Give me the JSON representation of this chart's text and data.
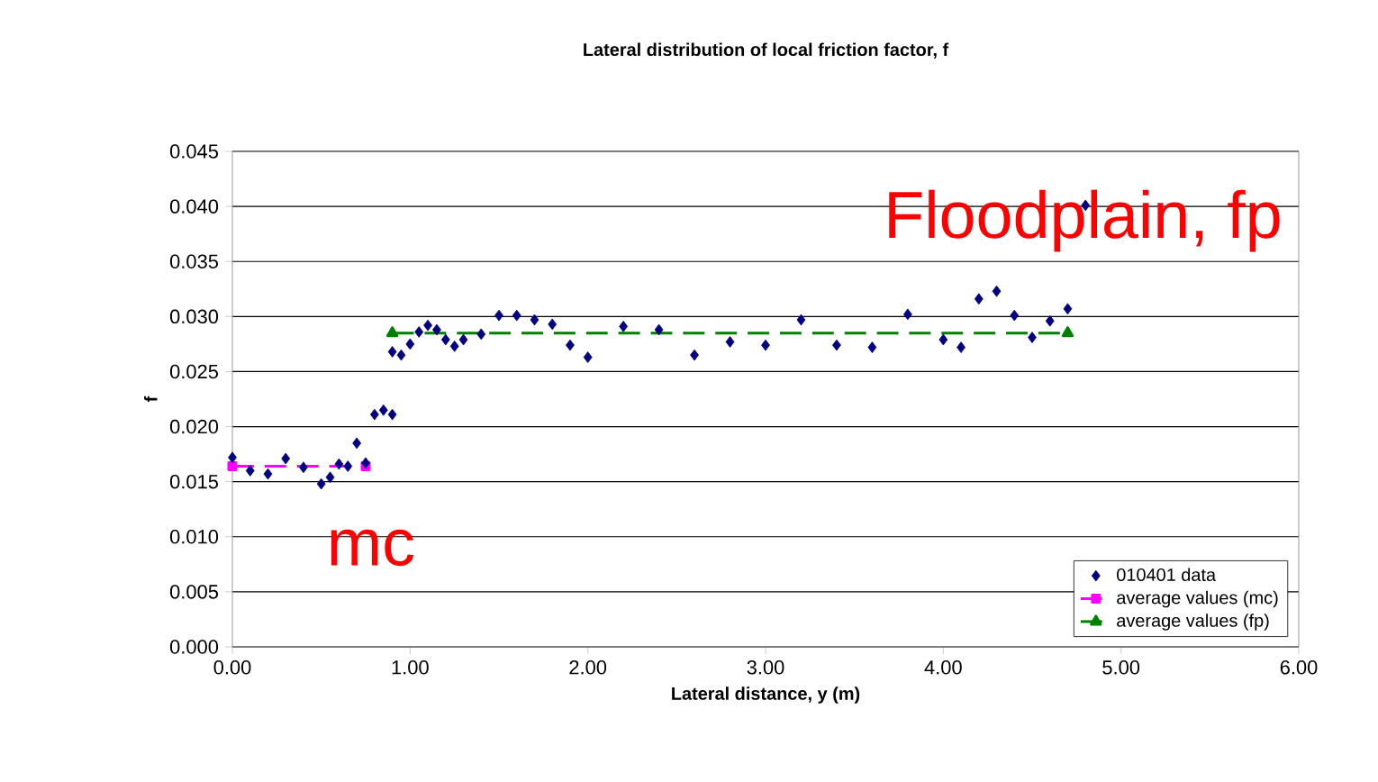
{
  "chart_data": {
    "type": "scatter",
    "title": "Lateral distribution of local friction factor, f",
    "xlabel": "Lateral distance, y (m)",
    "ylabel": "f",
    "xlim": [
      0,
      6
    ],
    "xticks": [
      {
        "value": 0,
        "label": "0.00"
      },
      {
        "value": 1,
        "label": "1.00"
      },
      {
        "value": 2,
        "label": "2.00"
      },
      {
        "value": 3,
        "label": "3.00"
      },
      {
        "value": 4,
        "label": "4.00"
      },
      {
        "value": 5,
        "label": "5.00"
      },
      {
        "value": 6,
        "label": "6.00"
      }
    ],
    "ylim": [
      0,
      0.045
    ],
    "yticks": [
      {
        "value": 0,
        "label": "0.000"
      },
      {
        "value": 0.005,
        "label": "0.005"
      },
      {
        "value": 0.01,
        "label": "0.010"
      },
      {
        "value": 0.015,
        "label": "0.015"
      },
      {
        "value": 0.02,
        "label": "0.020"
      },
      {
        "value": 0.025,
        "label": "0.025"
      },
      {
        "value": 0.03,
        "label": "0.030"
      },
      {
        "value": 0.035,
        "label": "0.035"
      },
      {
        "value": 0.04,
        "label": "0.040"
      },
      {
        "value": 0.045,
        "label": "0.045"
      }
    ],
    "grid": "y",
    "legend": "bottom right",
    "series": [
      {
        "name": "010401 data",
        "color": "#000080",
        "marker": "diamond",
        "x": [
          0,
          0.1,
          0.2,
          0.3,
          0.4,
          0.5,
          0.55,
          0.6,
          0.65,
          0.7,
          0.75,
          0.8,
          0.85,
          0.9,
          0.9,
          0.95,
          1.0,
          1.05,
          1.1,
          1.15,
          1.2,
          1.25,
          1.3,
          1.4,
          1.5,
          1.6,
          1.7,
          1.8,
          1.9,
          2.0,
          2.2,
          2.4,
          2.6,
          2.8,
          3.0,
          3.2,
          3.4,
          3.6,
          3.8,
          4.0,
          4.1,
          4.2,
          4.3,
          4.4,
          4.5,
          4.6,
          4.7,
          4.8
        ],
        "values": [
          0.0172,
          0.016,
          0.0157,
          0.0171,
          0.0163,
          0.0148,
          0.0154,
          0.0166,
          0.0164,
          0.0185,
          0.0167,
          0.0211,
          0.0215,
          0.0211,
          0.0268,
          0.0265,
          0.0275,
          0.0286,
          0.0292,
          0.0288,
          0.0279,
          0.0273,
          0.0279,
          0.0284,
          0.0301,
          0.0301,
          0.0297,
          0.0293,
          0.0274,
          0.0263,
          0.0291,
          0.0288,
          0.0265,
          0.0277,
          0.0274,
          0.0297,
          0.0274,
          0.0272,
          0.0302,
          0.0279,
          0.0272,
          0.0316,
          0.0323,
          0.0301,
          0.0281,
          0.0296,
          0.0307,
          0.0401
        ]
      },
      {
        "name": "average values (mc)",
        "type": "line",
        "color": "#ff00ff",
        "marker": "square",
        "line_style": "dashed",
        "x": [
          0,
          0.75
        ],
        "values": [
          0.0164,
          0.0164
        ]
      },
      {
        "name": "average values (fp)",
        "type": "line",
        "color": "#008000",
        "marker": "triangle",
        "line_style": "dashed",
        "x": [
          0.9,
          4.7
        ],
        "values": [
          0.0285,
          0.0285
        ]
      }
    ],
    "annotations": [
      "Floodplain, fp",
      "mc"
    ]
  }
}
